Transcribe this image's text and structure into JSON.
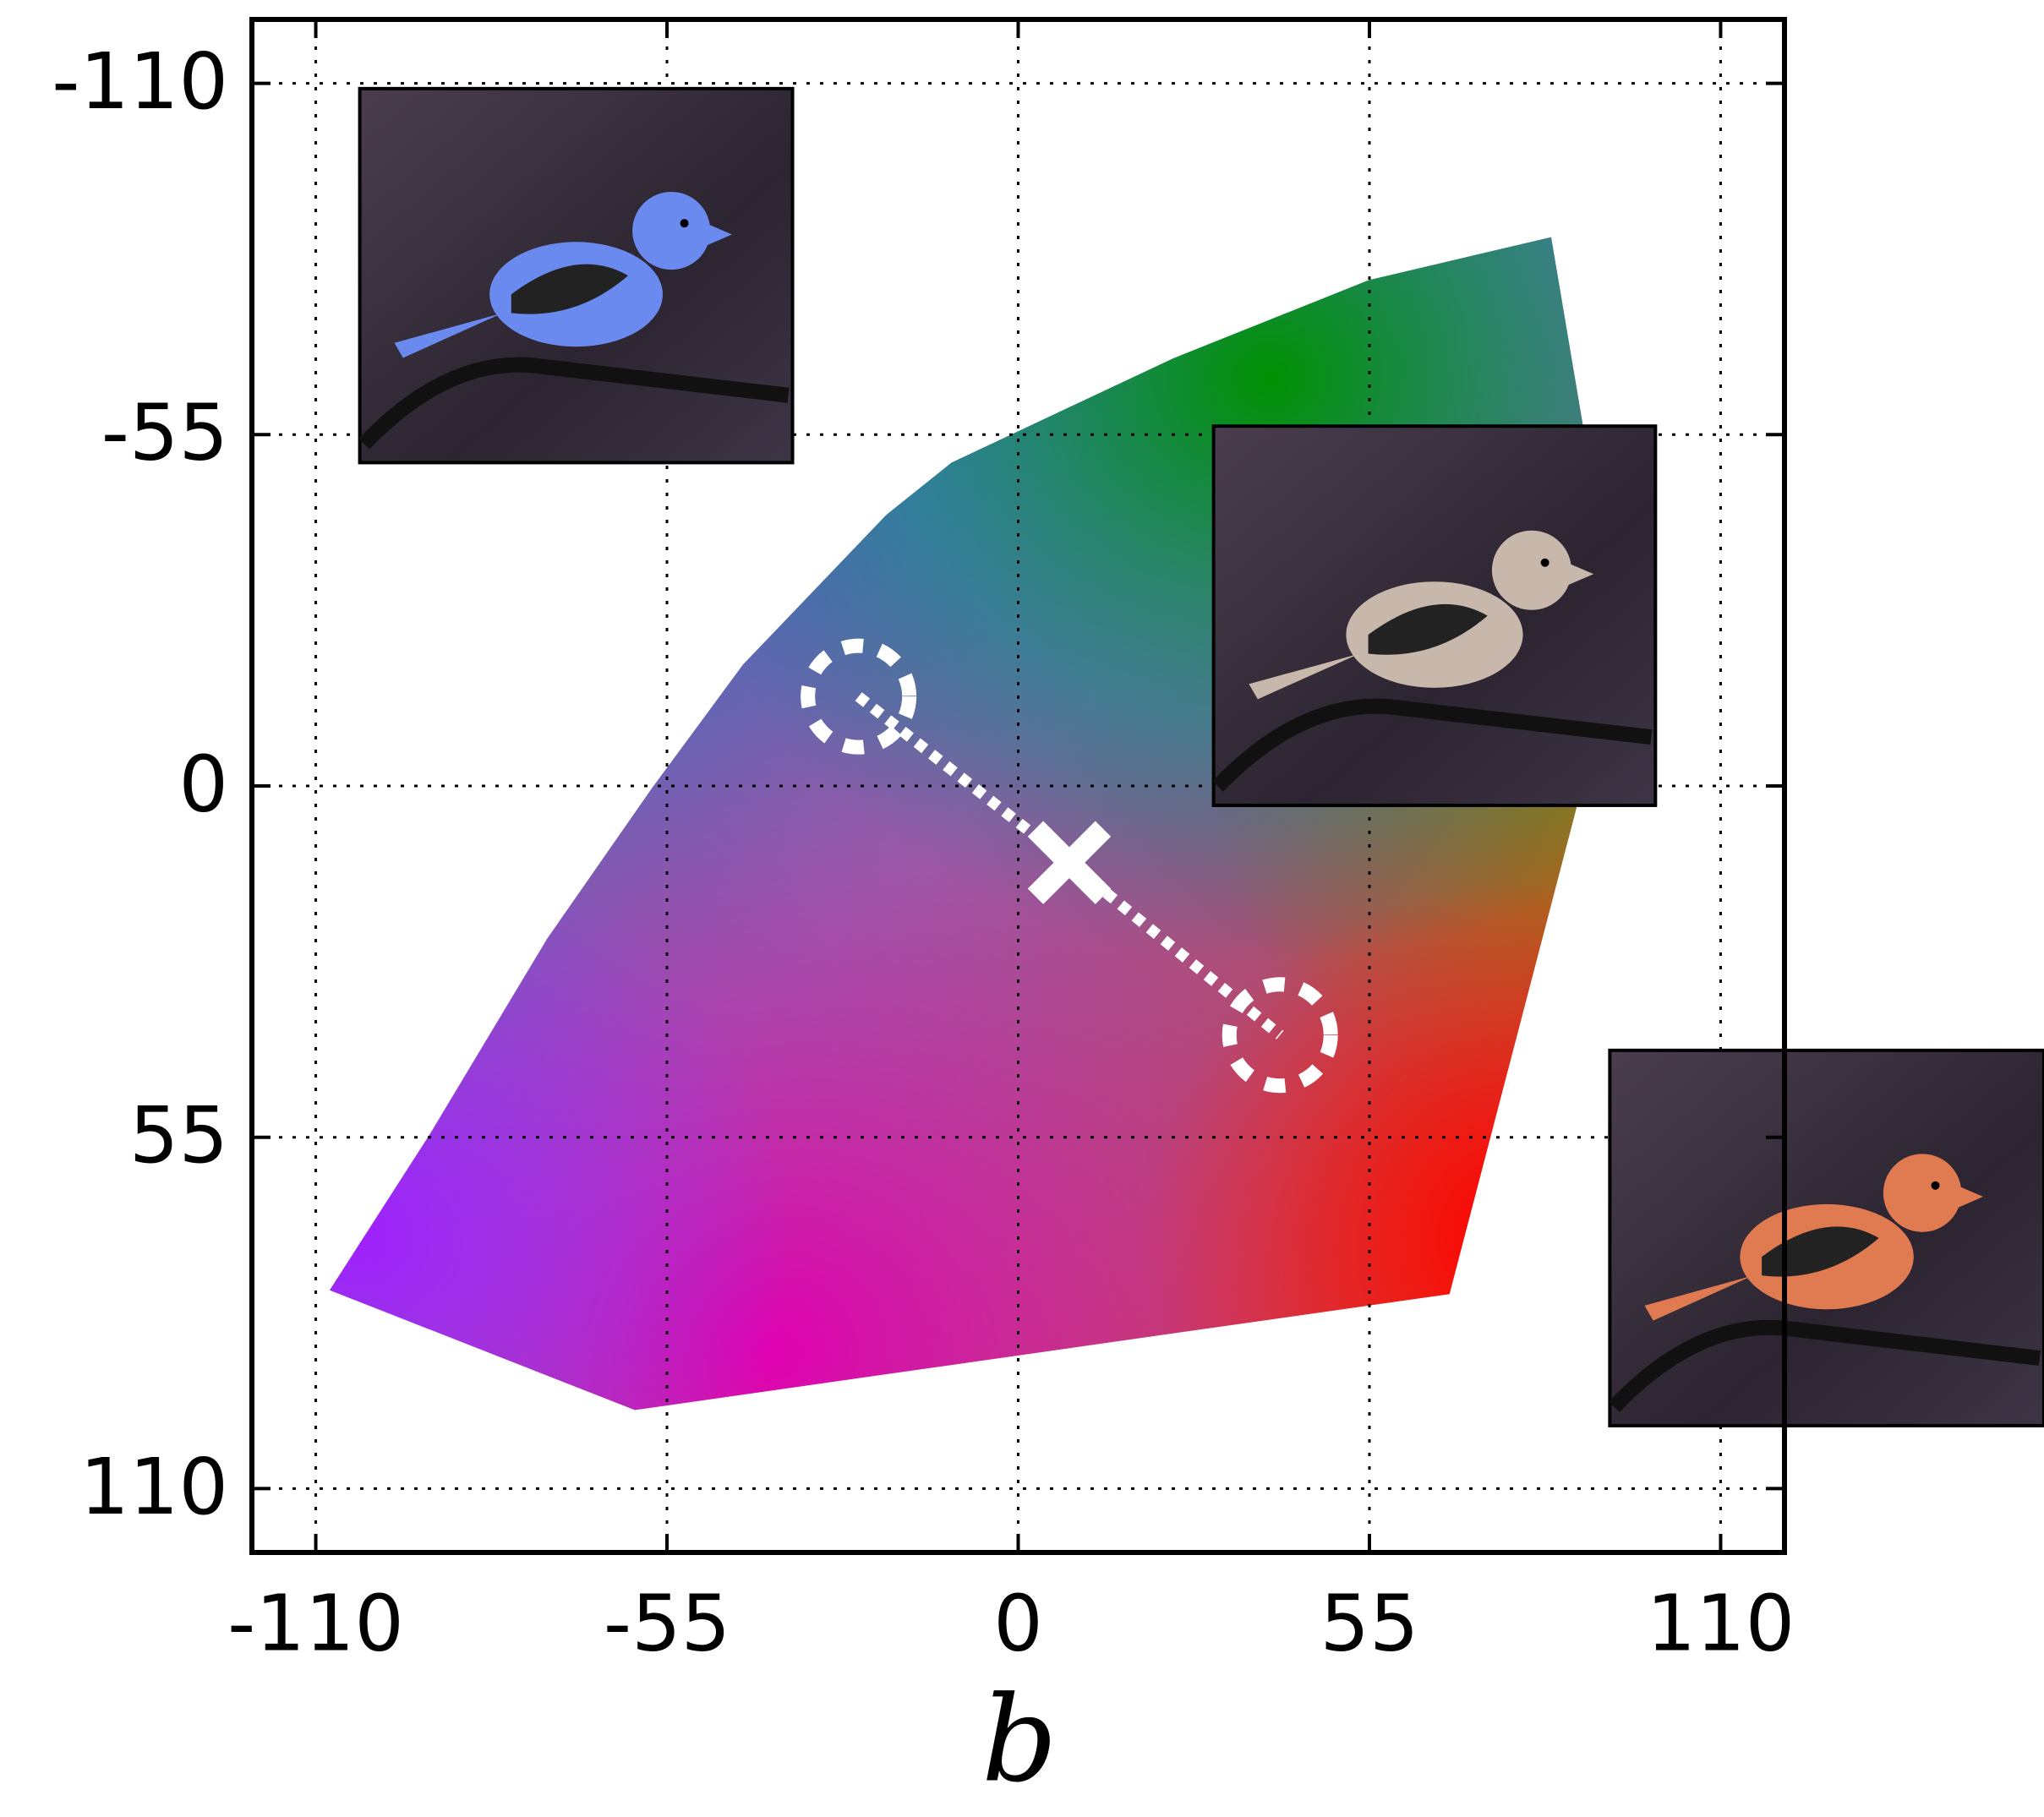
{
  "chart_data": {
    "type": "scatter",
    "xlabel": "b",
    "xlim": [
      -120,
      120
    ],
    "ylim": [
      -120,
      120
    ],
    "y_inverted": true,
    "xticks": [
      -110,
      -55,
      0,
      55,
      110
    ],
    "yticks": [
      -110,
      -55,
      0,
      55,
      110
    ],
    "grid": true,
    "x": [
      -25,
      8,
      41
    ],
    "values": [
      -14,
      12,
      39
    ],
    "markers": [
      "circle",
      "cross",
      "circle"
    ],
    "color": "#ffffff"
  }
}
